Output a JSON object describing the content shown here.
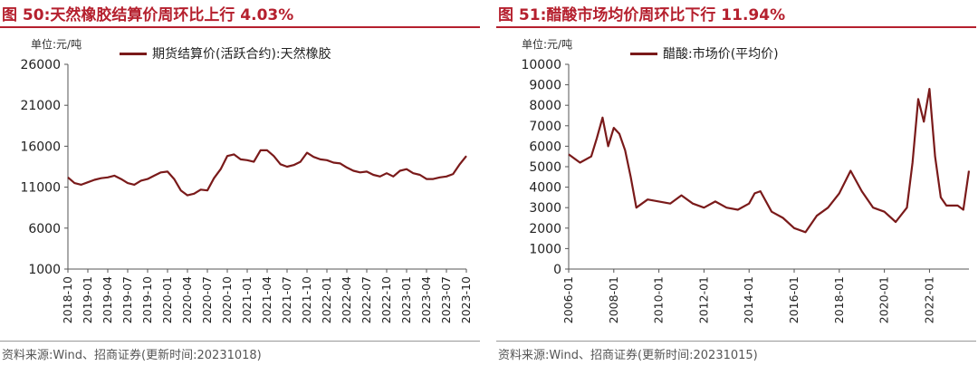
{
  "charts": [
    {
      "title": "图 50:天然橡胶结算价周环比上行 4.03%",
      "unit_label": "单位:元/吨",
      "source": "资料来源:Wind、招商证券(更新时间:20231018)"
    },
    {
      "title": "图 51:醋酸市场均价周环比下行 11.94%",
      "unit_label": "单位:元/吨",
      "source": "资料来源:Wind、招商证券(更新时间:20231015)"
    }
  ],
  "colors": {
    "accent": "#b5202e",
    "series": "#7a1a1a"
  },
  "chart_data": [
    {
      "type": "line",
      "title": "图 50:天然橡胶结算价周环比上行 4.03%",
      "ylabel": "单位:元/吨",
      "ylim": [
        1000,
        26000
      ],
      "yticks": [
        1000,
        6000,
        11000,
        16000,
        21000,
        26000
      ],
      "xlim": [
        "2018-10",
        "2023-10"
      ],
      "xticks": [
        "2018-10",
        "2019-01",
        "2019-04",
        "2019-07",
        "2019-10",
        "2020-01",
        "2020-04",
        "2020-07",
        "2020-10",
        "2021-01",
        "2021-04",
        "2021-07",
        "2021-10",
        "2022-01",
        "2022-04",
        "2022-07",
        "2022-10",
        "2023-01",
        "2023-04",
        "2023-07",
        "2023-10"
      ],
      "legend_position": "top",
      "series": [
        {
          "name": "期货结算价(活跃合约):天然橡胶",
          "x": [
            "2018-10",
            "2018-11",
            "2018-12",
            "2019-01",
            "2019-02",
            "2019-03",
            "2019-04",
            "2019-05",
            "2019-06",
            "2019-07",
            "2019-08",
            "2019-09",
            "2019-10",
            "2019-11",
            "2019-12",
            "2020-01",
            "2020-02",
            "2020-03",
            "2020-04",
            "2020-05",
            "2020-06",
            "2020-07",
            "2020-08",
            "2020-09",
            "2020-10",
            "2020-11",
            "2020-12",
            "2021-01",
            "2021-02",
            "2021-03",
            "2021-04",
            "2021-05",
            "2021-06",
            "2021-07",
            "2021-08",
            "2021-09",
            "2021-10",
            "2021-11",
            "2021-12",
            "2022-01",
            "2022-02",
            "2022-03",
            "2022-04",
            "2022-05",
            "2022-06",
            "2022-07",
            "2022-08",
            "2022-09",
            "2022-10",
            "2022-11",
            "2022-12",
            "2023-01",
            "2023-02",
            "2023-03",
            "2023-04",
            "2023-05",
            "2023-06",
            "2023-07",
            "2023-08",
            "2023-09",
            "2023-10"
          ],
          "values": [
            12200,
            11500,
            11300,
            11600,
            11900,
            12100,
            12200,
            12400,
            12000,
            11500,
            11300,
            11800,
            12000,
            12400,
            12800,
            12900,
            12000,
            10600,
            10000,
            10200,
            10700,
            10600,
            12100,
            13200,
            14800,
            15000,
            14400,
            14300,
            14100,
            15500,
            15500,
            14800,
            13800,
            13500,
            13700,
            14100,
            15200,
            14700,
            14400,
            14300,
            14000,
            13900,
            13400,
            13000,
            12800,
            12900,
            12500,
            12300,
            12700,
            12300,
            13000,
            13200,
            12700,
            12500,
            12000,
            12000,
            12200,
            12300,
            12600,
            13800,
            14800
          ]
        }
      ]
    },
    {
      "type": "line",
      "title": "图 51:醋酸市场均价周环比下行 11.94%",
      "ylabel": "单位:元/吨",
      "ylim": [
        0,
        10000
      ],
      "yticks": [
        0,
        1000,
        2000,
        3000,
        4000,
        5000,
        6000,
        7000,
        8000,
        9000,
        10000
      ],
      "xlim": [
        "2006-01",
        "2023-10"
      ],
      "xticks": [
        "2006-01",
        "2008-01",
        "2010-01",
        "2012-01",
        "2014-01",
        "2016-01",
        "2018-01",
        "2020-01",
        "2022-01"
      ],
      "legend_position": "top",
      "series": [
        {
          "name": "醋酸:市场价(平均价)",
          "x": [
            "2006-01",
            "2006-07",
            "2007-01",
            "2007-04",
            "2007-07",
            "2007-10",
            "2008-01",
            "2008-04",
            "2008-07",
            "2008-10",
            "2009-01",
            "2009-07",
            "2010-01",
            "2010-07",
            "2011-01",
            "2011-07",
            "2012-01",
            "2012-07",
            "2013-01",
            "2013-07",
            "2014-01",
            "2014-04",
            "2014-07",
            "2015-01",
            "2015-07",
            "2016-01",
            "2016-07",
            "2017-01",
            "2017-07",
            "2018-01",
            "2018-07",
            "2019-01",
            "2019-07",
            "2020-01",
            "2020-07",
            "2021-01",
            "2021-04",
            "2021-07",
            "2021-10",
            "2022-01",
            "2022-04",
            "2022-07",
            "2022-10",
            "2023-01",
            "2023-04",
            "2023-07",
            "2023-10"
          ],
          "values": [
            5600,
            5200,
            5500,
            6400,
            7400,
            6000,
            6900,
            6600,
            5800,
            4500,
            3000,
            3400,
            3300,
            3200,
            3600,
            3200,
            3000,
            3300,
            3000,
            2900,
            3200,
            3700,
            3800,
            2800,
            2500,
            2000,
            1800,
            2600,
            3000,
            3700,
            4800,
            3800,
            3000,
            2800,
            2300,
            3000,
            5200,
            8300,
            7200,
            8800,
            5500,
            3500,
            3100,
            3100,
            3100,
            2900,
            4800
          ]
        }
      ]
    }
  ]
}
